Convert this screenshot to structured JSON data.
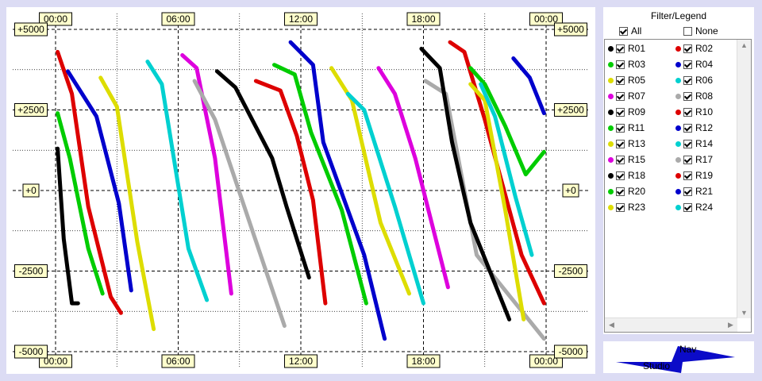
{
  "chart_data": {
    "type": "scatter",
    "title": "",
    "xlabel": "",
    "ylabel": "",
    "x_ticks": [
      "00:00",
      "06:00",
      "12:00",
      "18:00",
      "00:00"
    ],
    "y_ticks": [
      "+5000",
      "+2500",
      "+0",
      "-2500",
      "-5000"
    ],
    "xlim": [
      0,
      24
    ],
    "ylim": [
      -5000,
      5000
    ],
    "grid": true,
    "series": [
      {
        "name": "R01",
        "color": "#000000",
        "points": [
          [
            0.1,
            1300
          ],
          [
            0.4,
            -1500
          ],
          [
            0.8,
            -3500
          ],
          [
            1.1,
            -3500
          ]
        ]
      },
      {
        "name": "R02",
        "color": "#dd0000",
        "points": [
          [
            0.1,
            4300
          ],
          [
            0.8,
            3000
          ],
          [
            1.6,
            -500
          ],
          [
            2.7,
            -3300
          ],
          [
            3.2,
            -3800
          ]
        ]
      },
      {
        "name": "R03",
        "color": "#00cc00",
        "points": [
          [
            0.1,
            2400
          ],
          [
            0.7,
            1000
          ],
          [
            1.6,
            -1800
          ],
          [
            2.3,
            -3200
          ]
        ]
      },
      {
        "name": "R04",
        "color": "#0000cc",
        "points": [
          [
            0.6,
            3700
          ],
          [
            2.0,
            2300
          ],
          [
            3.1,
            -400
          ],
          [
            3.7,
            -3100
          ]
        ]
      },
      {
        "name": "R05",
        "color": "#dddd00",
        "points": [
          [
            2.2,
            3500
          ],
          [
            3.0,
            2600
          ],
          [
            4.0,
            -1600
          ],
          [
            4.8,
            -4300
          ]
        ]
      },
      {
        "name": "R06",
        "color": "#00d0d0",
        "points": [
          [
            4.5,
            4000
          ],
          [
            5.2,
            3300
          ],
          [
            6.5,
            -1800
          ],
          [
            7.4,
            -3400
          ]
        ]
      },
      {
        "name": "R07",
        "color": "#dd00dd",
        "points": [
          [
            6.2,
            4200
          ],
          [
            6.9,
            3800
          ],
          [
            7.8,
            1000
          ],
          [
            8.6,
            -3200
          ]
        ]
      },
      {
        "name": "R08",
        "color": "#aaaaaa",
        "points": [
          [
            6.8,
            3400
          ],
          [
            7.8,
            2200
          ],
          [
            9.5,
            -1000
          ],
          [
            11.2,
            -4200
          ]
        ]
      },
      {
        "name": "R09",
        "color": "#000000",
        "points": [
          [
            7.9,
            3700
          ],
          [
            8.8,
            3200
          ],
          [
            10.6,
            1000
          ],
          [
            11.3,
            -500
          ],
          [
            12.4,
            -2700
          ]
        ]
      },
      {
        "name": "R10",
        "color": "#dd0000",
        "points": [
          [
            9.8,
            3400
          ],
          [
            11.0,
            3100
          ],
          [
            11.8,
            1700
          ],
          [
            12.6,
            -300
          ],
          [
            13.2,
            -3500
          ]
        ]
      },
      {
        "name": "R11",
        "color": "#00cc00",
        "points": [
          [
            10.7,
            3900
          ],
          [
            11.7,
            3600
          ],
          [
            12.5,
            1800
          ],
          [
            14.0,
            -600
          ],
          [
            15.2,
            -3500
          ]
        ]
      },
      {
        "name": "R12",
        "color": "#0000cc",
        "points": [
          [
            11.5,
            4600
          ],
          [
            12.6,
            3900
          ],
          [
            13.1,
            1500
          ],
          [
            15.1,
            -2000
          ],
          [
            16.1,
            -4600
          ]
        ]
      },
      {
        "name": "R13",
        "color": "#dddd00",
        "points": [
          [
            13.5,
            3800
          ],
          [
            14.5,
            2800
          ],
          [
            15.9,
            -1000
          ],
          [
            17.3,
            -3200
          ]
        ]
      },
      {
        "name": "R14",
        "color": "#00d0d0",
        "points": [
          [
            14.3,
            3000
          ],
          [
            15.1,
            2500
          ],
          [
            16.6,
            -500
          ],
          [
            18.0,
            -3500
          ]
        ]
      },
      {
        "name": "R15",
        "color": "#dd00dd",
        "points": [
          [
            15.8,
            3800
          ],
          [
            16.6,
            3000
          ],
          [
            17.6,
            1000
          ],
          [
            19.2,
            -3000
          ]
        ]
      },
      {
        "name": "R17",
        "color": "#aaaaaa",
        "points": [
          [
            18.1,
            3400
          ],
          [
            19.1,
            3000
          ],
          [
            19.7,
            1000
          ],
          [
            20.6,
            -2000
          ],
          [
            23.9,
            -4600
          ]
        ]
      },
      {
        "name": "R18",
        "color": "#000000",
        "points": [
          [
            17.9,
            4400
          ],
          [
            18.8,
            3800
          ],
          [
            19.4,
            1500
          ],
          [
            20.3,
            -1000
          ],
          [
            22.2,
            -4000
          ]
        ]
      },
      {
        "name": "R19",
        "color": "#dd0000",
        "points": [
          [
            19.3,
            4600
          ],
          [
            20.0,
            4300
          ],
          [
            21.0,
            2200
          ],
          [
            22.8,
            -2000
          ],
          [
            23.9,
            -3500
          ]
        ]
      },
      {
        "name": "R20",
        "color": "#00cc00",
        "points": [
          [
            20.3,
            3800
          ],
          [
            21.0,
            3300
          ],
          [
            22.0,
            2000
          ],
          [
            23.0,
            500
          ],
          [
            23.9,
            1200
          ]
        ]
      },
      {
        "name": "R21",
        "color": "#0000cc",
        "points": [
          [
            22.4,
            4100
          ],
          [
            23.2,
            3500
          ],
          [
            23.9,
            2400
          ]
        ]
      },
      {
        "name": "R23",
        "color": "#dddd00",
        "points": [
          [
            20.3,
            3300
          ],
          [
            21.0,
            2800
          ],
          [
            22.0,
            -600
          ],
          [
            22.9,
            -4000
          ]
        ]
      },
      {
        "name": "R24",
        "color": "#00d0d0",
        "points": [
          [
            20.8,
            3300
          ],
          [
            21.5,
            2300
          ],
          [
            22.5,
            -200
          ],
          [
            23.3,
            -2000
          ]
        ]
      }
    ]
  },
  "legend": {
    "title": "Filter/Legend",
    "all_label": "All",
    "none_label": "None",
    "items": [
      {
        "label": "R01",
        "color": "#000000"
      },
      {
        "label": "R02",
        "color": "#dd0000"
      },
      {
        "label": "R03",
        "color": "#00cc00"
      },
      {
        "label": "R04",
        "color": "#0000cc"
      },
      {
        "label": "R05",
        "color": "#dddd00"
      },
      {
        "label": "R06",
        "color": "#00d0d0"
      },
      {
        "label": "R07",
        "color": "#dd00dd"
      },
      {
        "label": "R08",
        "color": "#aaaaaa"
      },
      {
        "label": "R09",
        "color": "#000000"
      },
      {
        "label": "R10",
        "color": "#dd0000"
      },
      {
        "label": "R11",
        "color": "#00cc00"
      },
      {
        "label": "R12",
        "color": "#0000cc"
      },
      {
        "label": "R13",
        "color": "#dddd00"
      },
      {
        "label": "R14",
        "color": "#00d0d0"
      },
      {
        "label": "R15",
        "color": "#dd00dd"
      },
      {
        "label": "R17",
        "color": "#aaaaaa"
      },
      {
        "label": "R18",
        "color": "#000000"
      },
      {
        "label": "R19",
        "color": "#dd0000"
      },
      {
        "label": "R20",
        "color": "#00cc00"
      },
      {
        "label": "R21",
        "color": "#0000cc"
      },
      {
        "label": "R23",
        "color": "#dddd00"
      },
      {
        "label": "R24",
        "color": "#00d0d0"
      }
    ]
  },
  "nav": {
    "nav_label": "Nav",
    "studio_label": "Studio"
  }
}
